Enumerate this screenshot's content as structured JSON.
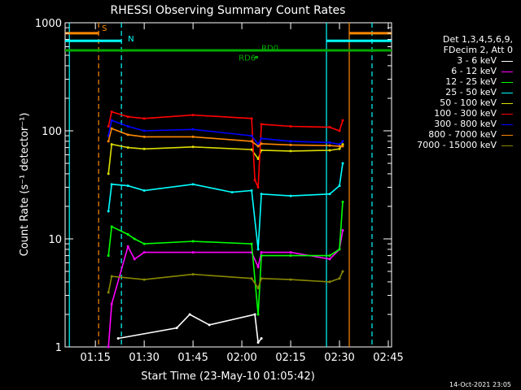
{
  "chart_data": {
    "type": "line",
    "title": "RHESSI Observing Summary Count Rates",
    "xlabel": "Start Time (23-May-10 01:05:42)",
    "ylabel": "Count Rate (s⁻¹ detector⁻¹)",
    "yscale": "log",
    "ylim": [
      1,
      1000
    ],
    "xlim": [
      "01:05:42",
      "02:46"
    ],
    "x_ticks": [
      "01:15",
      "01:30",
      "01:45",
      "02:00",
      "02:15",
      "02:30",
      "02:45"
    ],
    "y_ticks": [
      "1",
      "10",
      "100",
      "1000"
    ],
    "grid": false,
    "legend_position": "right",
    "legend_header": [
      "Det 1,3,4,5,6,9,",
      "FDecim 2, Att 0"
    ],
    "series": [
      {
        "name": "3 - 6 keV",
        "color": "#ffffff",
        "x": [
          "01:22",
          "01:40",
          "01:44",
          "01:50",
          "02:04",
          "02:05",
          "02:06"
        ],
        "y": [
          1.2,
          1.5,
          2.0,
          1.6,
          2.0,
          1.1,
          1.2
        ]
      },
      {
        "name": "6 - 12 keV",
        "color": "#ff00ff",
        "x": [
          "01:19",
          "01:20",
          "01:25",
          "01:27",
          "01:30",
          "01:45",
          "02:03",
          "02:05",
          "02:06",
          "02:15",
          "02:27",
          "02:30",
          "02:31"
        ],
        "y": [
          1,
          2.5,
          8.5,
          6.5,
          7.5,
          7.5,
          7.5,
          5.5,
          7.5,
          7.5,
          6.5,
          8,
          12
        ]
      },
      {
        "name": "12 - 25 keV",
        "color": "#00ff00",
        "x": [
          "01:19",
          "01:20",
          "01:25",
          "01:27",
          "01:30",
          "01:45",
          "02:03",
          "02:05",
          "02:06",
          "02:15",
          "02:27",
          "02:30",
          "02:31"
        ],
        "y": [
          7,
          13,
          11,
          10,
          9,
          9.5,
          9,
          2,
          7,
          7,
          7,
          8,
          22
        ]
      },
      {
        "name": "25 - 50 keV",
        "color": "#00ffff",
        "x": [
          "01:19",
          "01:20",
          "01:25",
          "01:30",
          "01:45",
          "01:57",
          "02:03",
          "02:05",
          "02:06",
          "02:15",
          "02:27",
          "02:30",
          "02:31"
        ],
        "y": [
          18,
          32,
          31,
          28,
          32,
          27,
          28,
          8,
          26,
          25,
          26,
          31,
          50
        ]
      },
      {
        "name": "50 - 100 keV",
        "color": "#dddd00",
        "x": [
          "01:19",
          "01:20",
          "01:25",
          "01:30",
          "01:45",
          "02:03",
          "02:05",
          "02:06",
          "02:15",
          "02:27",
          "02:30",
          "02:31"
        ],
        "y": [
          40,
          75,
          70,
          68,
          71,
          67,
          55,
          66,
          65,
          66,
          68,
          75
        ]
      },
      {
        "name": "100 - 300 keV",
        "color": "#ff0000",
        "x": [
          "01:19",
          "01:20",
          "01:25",
          "01:30",
          "01:45",
          "02:03",
          "02:04",
          "02:05",
          "02:06",
          "02:15",
          "02:27",
          "02:30",
          "02:31"
        ],
        "y": [
          110,
          150,
          135,
          130,
          140,
          130,
          35,
          30,
          115,
          110,
          108,
          100,
          125
        ]
      },
      {
        "name": "300 - 800 keV",
        "color": "#0000ff",
        "x": [
          "01:19",
          "01:20",
          "01:25",
          "01:30",
          "01:45",
          "02:03",
          "02:05",
          "02:06",
          "02:15",
          "02:27",
          "02:30",
          "02:31"
        ],
        "y": [
          90,
          125,
          110,
          100,
          103,
          90,
          75,
          85,
          80,
          78,
          75,
          80
        ]
      },
      {
        "name": "800 - 7000 keV",
        "color": "#ff8800",
        "x": [
          "01:19",
          "01:20",
          "01:25",
          "01:30",
          "01:45",
          "02:03",
          "02:05",
          "02:06",
          "02:15",
          "02:27",
          "02:30",
          "02:31"
        ],
        "y": [
          80,
          105,
          92,
          88,
          88,
          80,
          72,
          76,
          74,
          73,
          72,
          72
        ]
      },
      {
        "name": "7000 - 15000 keV",
        "color": "#888800",
        "x": [
          "01:19",
          "01:20",
          "01:30",
          "01:45",
          "02:03",
          "02:05",
          "02:06",
          "02:15",
          "02:27",
          "02:30",
          "02:31"
        ],
        "y": [
          3.2,
          4.5,
          4.2,
          4.7,
          4.3,
          3.5,
          4.3,
          4.2,
          4.0,
          4.3,
          5.0
        ]
      }
    ],
    "annotations": {
      "flag_labels": [
        "S",
        "N",
        "RD0",
        "RD6"
      ],
      "vertical_lines": [
        {
          "x": "01:07",
          "color": "#00ffff",
          "style": "solid"
        },
        {
          "x": "01:16",
          "color": "#ff8800",
          "style": "dashed"
        },
        {
          "x": "01:23",
          "color": "#00ffff",
          "style": "dashed"
        },
        {
          "x": "02:26",
          "color": "#00ffff",
          "style": "solid"
        },
        {
          "x": "02:33",
          "color": "#ff8800",
          "style": "solid"
        },
        {
          "x": "02:40",
          "color": "#00ffff",
          "style": "dashed"
        }
      ],
      "bars": [
        {
          "label": "S",
          "color": "#ff8800",
          "x_start": "01:05:42",
          "x_end": "01:16",
          "y": 800
        },
        {
          "label": "S",
          "color": "#ff8800",
          "x_start": "02:33",
          "x_end": "02:46",
          "y": 800
        },
        {
          "label": "N",
          "color": "#00ffff",
          "x_start": "01:05:42",
          "x_end": "01:23",
          "y": 680
        },
        {
          "label": "N",
          "color": "#00ffff",
          "x_start": "02:26",
          "x_end": "02:46",
          "y": 680
        },
        {
          "label": "RD0",
          "color": "#00aa00",
          "x_start": "01:05:42",
          "x_end": "02:46",
          "y": 555
        },
        {
          "label": "RD6",
          "color": "#00aa00",
          "x_start": "02:04",
          "x_end": "02:05",
          "y": 480
        }
      ]
    }
  },
  "timestamp": "14-Oct-2021 23:05"
}
